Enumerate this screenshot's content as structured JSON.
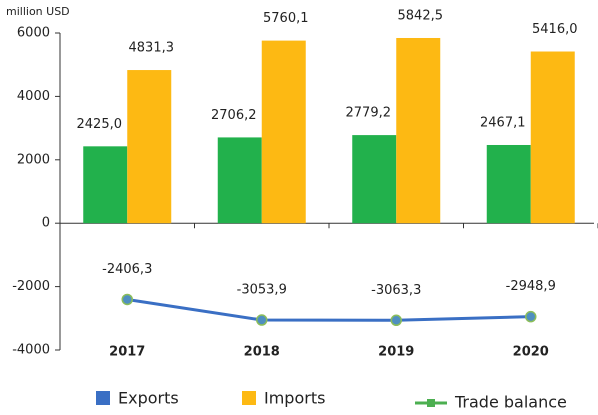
{
  "chart_data": {
    "type": "bar_line",
    "y_label": "million USD",
    "categories": [
      "2017",
      "2018",
      "2019",
      "2020"
    ],
    "series": [
      {
        "name": "Exports",
        "type": "bar",
        "color": "#22b14c",
        "legend_color": "#3a6fc4",
        "values": [
          2425.0,
          2706.2,
          2779.2,
          2467.1
        ],
        "value_labels": [
          "2425,0",
          "2706,2",
          "2779,2",
          "2467,1"
        ]
      },
      {
        "name": "Imports",
        "type": "bar",
        "color": "#fdb913",
        "legend_color": "#fdb913",
        "values": [
          4831.3,
          5760.1,
          5842.5,
          5416.0
        ],
        "value_labels": [
          "4831,3",
          "5760,1",
          "5842,5",
          "5416,0"
        ]
      },
      {
        "name": "Trade balance",
        "type": "line",
        "color": "#3a6fc4",
        "legend_color": "#4caf50",
        "values": [
          -2406.3,
          -3053.9,
          -3063.3,
          -2948.9
        ],
        "value_labels": [
          "-2406,3",
          "-3053,9",
          "-3063,3",
          "-2948,9"
        ]
      }
    ],
    "ylim": [
      -4000,
      6000
    ],
    "yticks": [
      -4000,
      -2000,
      0,
      2000,
      4000,
      6000
    ],
    "grid": false
  }
}
